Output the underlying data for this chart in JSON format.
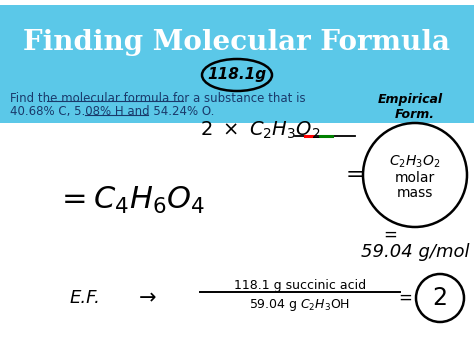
{
  "bg_color": "#ffffff",
  "header_bg": "#5bc8e8",
  "header_text": "Finding Molecular Formula",
  "header_text_color": "#ffffff",
  "header_fontsize": 20,
  "problem_text_line1": "Find the molecular formula for a substance that is",
  "problem_text_line2": "40.68% C, 5.08% H and 54.24% O.",
  "problem_fontsize": 8.5,
  "problem_color": "#1a3a6b",
  "circled_118": "118.1g"
}
